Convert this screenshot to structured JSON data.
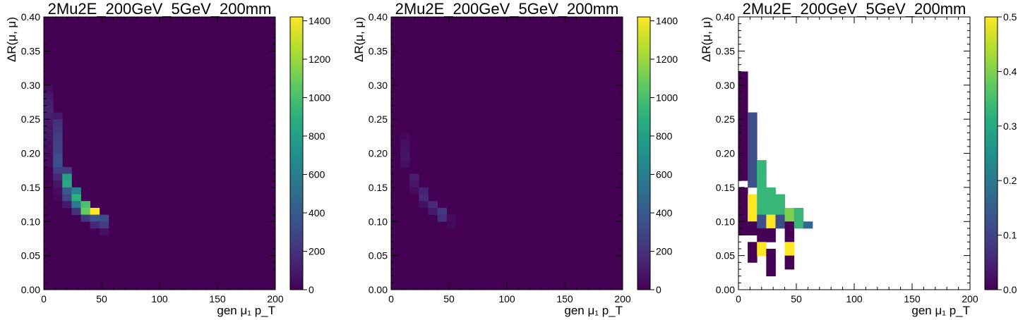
{
  "chart_data": [
    {
      "type": "heatmap",
      "title": "2Mu2E_200GeV_5GeV_200mm",
      "xlabel": "gen μ₁ p_T",
      "ylabel": "ΔR(μ, μ)",
      "xlim": [
        0,
        200
      ],
      "ylim": [
        0,
        0.4
      ],
      "xticks": [
        "0",
        "50",
        "100",
        "150",
        "200"
      ],
      "yticks": [
        "0.00",
        "0.05",
        "0.10",
        "0.15",
        "0.20",
        "0.25",
        "0.30",
        "0.35",
        "0.40"
      ],
      "bin_width_x": 8,
      "bin_width_y": 0.01,
      "background_value": 0,
      "colorbar": {
        "colormap": "viridis",
        "min": 0,
        "max": 1420,
        "ticks": [
          "0",
          "200",
          "400",
          "600",
          "800",
          "1000",
          "1200",
          "1400"
        ]
      },
      "cells": [
        [
          0,
          0.29,
          50
        ],
        [
          0,
          0.28,
          90
        ],
        [
          0,
          0.27,
          120
        ],
        [
          0,
          0.26,
          140
        ],
        [
          0,
          0.25,
          120
        ],
        [
          0,
          0.24,
          100
        ],
        [
          0,
          0.23,
          90
        ],
        [
          0,
          0.22,
          80
        ],
        [
          0,
          0.21,
          70
        ],
        [
          0,
          0.2,
          60
        ],
        [
          0,
          0.19,
          50
        ],
        [
          0,
          0.18,
          40
        ],
        [
          8,
          0.25,
          100
        ],
        [
          8,
          0.24,
          190
        ],
        [
          8,
          0.23,
          230
        ],
        [
          8,
          0.22,
          250
        ],
        [
          8,
          0.21,
          270
        ],
        [
          8,
          0.2,
          290
        ],
        [
          8,
          0.19,
          330
        ],
        [
          8,
          0.18,
          350
        ],
        [
          8,
          0.17,
          250
        ],
        [
          8,
          0.16,
          150
        ],
        [
          8,
          0.15,
          80
        ],
        [
          8,
          0.14,
          50
        ],
        [
          8,
          0.13,
          30
        ],
        [
          16,
          0.17,
          250
        ],
        [
          16,
          0.16,
          800
        ],
        [
          16,
          0.15,
          850
        ],
        [
          16,
          0.14,
          400
        ],
        [
          16,
          0.13,
          300
        ],
        [
          16,
          0.12,
          100
        ],
        [
          24,
          0.14,
          650
        ],
        [
          24,
          0.13,
          900
        ],
        [
          24,
          0.12,
          580
        ],
        [
          24,
          0.11,
          200
        ],
        [
          32,
          0.12,
          1000
        ],
        [
          32,
          0.11,
          1080
        ],
        [
          32,
          0.1,
          230
        ],
        [
          40,
          0.11,
          1420
        ],
        [
          40,
          0.1,
          360
        ],
        [
          40,
          0.09,
          150
        ],
        [
          48,
          0.1,
          340
        ],
        [
          48,
          0.09,
          250
        ],
        [
          48,
          0.08,
          60
        ]
      ]
    },
    {
      "type": "heatmap",
      "title": "2Mu2E_200GeV_5GeV_200mm",
      "xlabel": "gen μ₁ p_T",
      "ylabel": "ΔR(μ, μ)",
      "xlim": [
        0,
        200
      ],
      "ylim": [
        0,
        0.4
      ],
      "xticks": [
        "0",
        "50",
        "100",
        "150",
        "200"
      ],
      "yticks": [
        "0.00",
        "0.05",
        "0.10",
        "0.15",
        "0.20",
        "0.25",
        "0.30",
        "0.35",
        "0.40"
      ],
      "bin_width_x": 8,
      "bin_width_y": 0.01,
      "background_value": 0,
      "colorbar": {
        "colormap": "viridis",
        "min": 0,
        "max": 1420,
        "ticks": [
          "0",
          "200",
          "400",
          "600",
          "800",
          "1000",
          "1200",
          "1400"
        ]
      },
      "cells": [
        [
          8,
          0.22,
          30
        ],
        [
          8,
          0.21,
          60
        ],
        [
          8,
          0.2,
          70
        ],
        [
          8,
          0.19,
          80
        ],
        [
          8,
          0.18,
          60
        ],
        [
          16,
          0.16,
          110
        ],
        [
          16,
          0.15,
          90
        ],
        [
          16,
          0.14,
          40
        ],
        [
          24,
          0.14,
          140
        ],
        [
          24,
          0.13,
          160
        ],
        [
          24,
          0.12,
          70
        ],
        [
          32,
          0.12,
          170
        ],
        [
          32,
          0.11,
          100
        ],
        [
          40,
          0.11,
          230
        ],
        [
          40,
          0.1,
          180
        ],
        [
          48,
          0.1,
          40
        ],
        [
          48,
          0.09,
          30
        ]
      ]
    },
    {
      "type": "heatmap",
      "title": "2Mu2E_200GeV_5GeV_200mm",
      "xlabel": "gen μ₁ p_T",
      "ylabel": "ΔR(μ, μ)",
      "xlim": [
        0,
        200
      ],
      "ylim": [
        0,
        0.4
      ],
      "xticks": [
        "0",
        "50",
        "100",
        "150",
        "200"
      ],
      "yticks": [
        "0.00",
        "0.05",
        "0.10",
        "0.15",
        "0.20",
        "0.25",
        "0.30",
        "0.35",
        "0.40"
      ],
      "bin_width_x": 8,
      "bin_width_y": 0.01,
      "background_value": null,
      "colorbar": {
        "colormap": "viridis",
        "min": 0,
        "max": 0.5,
        "ticks": [
          "0.0",
          "0.1",
          "0.2",
          "0.3",
          "0.4",
          "0.5"
        ]
      },
      "cells": [
        [
          0,
          0.31,
          0.0
        ],
        [
          0,
          0.3,
          0.0
        ],
        [
          0,
          0.29,
          0.0
        ],
        [
          0,
          0.28,
          0.0
        ],
        [
          0,
          0.27,
          0.0
        ],
        [
          0,
          0.26,
          0.0
        ],
        [
          0,
          0.25,
          0.0
        ],
        [
          0,
          0.24,
          0.0
        ],
        [
          0,
          0.23,
          0.0
        ],
        [
          0,
          0.22,
          0.0
        ],
        [
          0,
          0.21,
          0.0
        ],
        [
          0,
          0.2,
          0.0
        ],
        [
          0,
          0.19,
          0.0
        ],
        [
          0,
          0.18,
          0.0
        ],
        [
          0,
          0.17,
          0.0
        ],
        [
          0,
          0.16,
          0.0
        ],
        [
          0,
          0.14,
          0.0
        ],
        [
          0,
          0.13,
          0.0
        ],
        [
          0,
          0.12,
          0.0
        ],
        [
          0,
          0.11,
          0.0
        ],
        [
          0,
          0.1,
          0.0
        ],
        [
          0,
          0.09,
          0.0
        ],
        [
          0,
          0.08,
          0.0
        ],
        [
          8,
          0.25,
          0.12
        ],
        [
          8,
          0.24,
          0.12
        ],
        [
          8,
          0.23,
          0.12
        ],
        [
          8,
          0.22,
          0.12
        ],
        [
          8,
          0.21,
          0.12
        ],
        [
          8,
          0.2,
          0.12
        ],
        [
          8,
          0.19,
          0.12
        ],
        [
          8,
          0.18,
          0.12
        ],
        [
          8,
          0.17,
          0.12
        ],
        [
          8,
          0.16,
          0.12
        ],
        [
          8,
          0.15,
          0.12
        ],
        [
          8,
          0.13,
          0.5
        ],
        [
          8,
          0.12,
          0.5
        ],
        [
          8,
          0.11,
          0.5
        ],
        [
          8,
          0.1,
          0.5
        ],
        [
          8,
          0.09,
          0.0
        ],
        [
          8,
          0.08,
          0.0
        ],
        [
          8,
          0.06,
          0.0
        ],
        [
          8,
          0.05,
          0.0
        ],
        [
          8,
          0.04,
          0.0
        ],
        [
          16,
          0.18,
          0.33
        ],
        [
          16,
          0.17,
          0.33
        ],
        [
          16,
          0.16,
          0.33
        ],
        [
          16,
          0.15,
          0.33
        ],
        [
          16,
          0.14,
          0.33
        ],
        [
          16,
          0.13,
          0.33
        ],
        [
          16,
          0.12,
          0.33
        ],
        [
          16,
          0.11,
          0.33
        ],
        [
          16,
          0.1,
          0.12
        ],
        [
          16,
          0.09,
          0.12
        ],
        [
          16,
          0.08,
          0.0
        ],
        [
          16,
          0.07,
          0.0
        ],
        [
          16,
          0.06,
          0.5
        ],
        [
          16,
          0.05,
          0.5
        ],
        [
          24,
          0.14,
          0.33
        ],
        [
          24,
          0.13,
          0.33
        ],
        [
          24,
          0.12,
          0.33
        ],
        [
          24,
          0.11,
          0.33
        ],
        [
          24,
          0.1,
          0.5
        ],
        [
          24,
          0.09,
          0.5
        ],
        [
          24,
          0.08,
          0.0
        ],
        [
          24,
          0.07,
          0.0
        ],
        [
          24,
          0.05,
          0.0
        ],
        [
          24,
          0.04,
          0.0
        ],
        [
          24,
          0.03,
          0.0
        ],
        [
          24,
          0.02,
          0.0
        ],
        [
          32,
          0.13,
          0.33
        ],
        [
          32,
          0.12,
          0.33
        ],
        [
          32,
          0.11,
          0.33
        ],
        [
          32,
          0.1,
          0.12
        ],
        [
          32,
          0.09,
          0.12
        ],
        [
          40,
          0.11,
          0.4
        ],
        [
          40,
          0.1,
          0.4
        ],
        [
          40,
          0.09,
          0.0
        ],
        [
          40,
          0.08,
          0.0
        ],
        [
          40,
          0.07,
          0.0
        ],
        [
          40,
          0.06,
          0.5
        ],
        [
          40,
          0.05,
          0.5
        ],
        [
          40,
          0.04,
          0.0
        ],
        [
          40,
          0.03,
          0.0
        ],
        [
          48,
          0.11,
          0.33
        ],
        [
          48,
          0.1,
          0.33
        ],
        [
          48,
          0.09,
          0.33
        ],
        [
          56,
          0.09,
          0.17
        ]
      ]
    }
  ]
}
